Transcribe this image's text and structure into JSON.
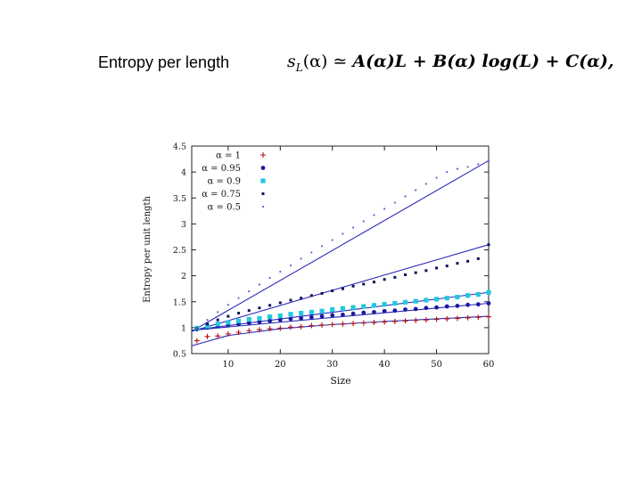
{
  "slide": {
    "title": "Entropy per length",
    "formula": {
      "lhs": "s",
      "lhs_sub": "L",
      "lhs_arg": "(α)",
      "relation": " ≃ ",
      "rhs": "A(α)L + B(α) log(L) + C(α),"
    }
  },
  "chart_data": {
    "type": "line",
    "xlabel": "Size",
    "ylabel": "Entropy per unit length",
    "xlim": [
      3,
      60
    ],
    "ylim": [
      0.5,
      4.5
    ],
    "xticks": [
      10,
      20,
      30,
      40,
      50,
      60
    ],
    "yticks": [
      0.5,
      1,
      1.5,
      2,
      2.5,
      3,
      3.5,
      4,
      4.5
    ],
    "legend_position": "top-left",
    "fit_color": "#2a2ab8",
    "series": [
      {
        "name": "α = 1",
        "marker": "plus",
        "color": "#b01010",
        "x": [
          4,
          6,
          8,
          10,
          12,
          14,
          16,
          18,
          20,
          22,
          24,
          26,
          28,
          30,
          32,
          34,
          36,
          38,
          40,
          42,
          44,
          46,
          48,
          50,
          52,
          54,
          56,
          58,
          60
        ],
        "y": [
          0.75,
          0.83,
          0.84,
          0.88,
          0.91,
          0.94,
          0.96,
          0.98,
          0.99,
          1.01,
          1.02,
          1.04,
          1.05,
          1.06,
          1.07,
          1.08,
          1.09,
          1.1,
          1.11,
          1.12,
          1.13,
          1.14,
          1.15,
          1.16,
          1.17,
          1.18,
          1.19,
          1.2,
          1.21
        ]
      },
      {
        "name": "α = 0.95",
        "marker": "circle",
        "color": "#1a1aa0",
        "x": [
          4,
          6,
          8,
          10,
          12,
          14,
          16,
          18,
          20,
          22,
          24,
          26,
          28,
          30,
          32,
          34,
          36,
          38,
          40,
          42,
          44,
          46,
          48,
          50,
          52,
          54,
          56,
          58,
          60
        ],
        "y": [
          0.97,
          1.0,
          1.03,
          1.05,
          1.07,
          1.09,
          1.11,
          1.13,
          1.15,
          1.17,
          1.18,
          1.2,
          1.22,
          1.24,
          1.25,
          1.27,
          1.29,
          1.3,
          1.32,
          1.33,
          1.35,
          1.36,
          1.38,
          1.39,
          1.41,
          1.42,
          1.44,
          1.45,
          1.47
        ]
      },
      {
        "name": "α = 0.9",
        "marker": "square",
        "color": "#22c8e0",
        "x": [
          4,
          6,
          8,
          10,
          12,
          14,
          16,
          18,
          20,
          22,
          24,
          26,
          28,
          30,
          32,
          34,
          36,
          38,
          40,
          42,
          44,
          46,
          48,
          50,
          52,
          54,
          56,
          58,
          60
        ],
        "y": [
          0.99,
          1.03,
          1.07,
          1.1,
          1.13,
          1.16,
          1.18,
          1.21,
          1.23,
          1.26,
          1.28,
          1.3,
          1.32,
          1.35,
          1.37,
          1.39,
          1.41,
          1.43,
          1.45,
          1.47,
          1.49,
          1.51,
          1.53,
          1.55,
          1.57,
          1.59,
          1.62,
          1.64,
          1.68
        ]
      },
      {
        "name": "α = 0.75",
        "marker": "dot",
        "color": "#10105a",
        "x": [
          4,
          6,
          8,
          10,
          12,
          14,
          16,
          18,
          20,
          22,
          24,
          26,
          28,
          30,
          32,
          34,
          36,
          38,
          40,
          42,
          44,
          46,
          48,
          50,
          52,
          54,
          56,
          58,
          60
        ],
        "y": [
          0.98,
          1.07,
          1.15,
          1.22,
          1.28,
          1.33,
          1.38,
          1.43,
          1.48,
          1.53,
          1.57,
          1.62,
          1.66,
          1.71,
          1.75,
          1.8,
          1.84,
          1.88,
          1.93,
          1.97,
          2.02,
          2.06,
          2.1,
          2.15,
          2.19,
          2.24,
          2.28,
          2.33,
          2.6
        ]
      },
      {
        "name": "α = 0.5",
        "marker": "smalldot",
        "color": "#6a5acd",
        "x": [
          4,
          6,
          8,
          10,
          12,
          14,
          16,
          18,
          20,
          22,
          24,
          26,
          28,
          30,
          32,
          34,
          36,
          38,
          40,
          42,
          44,
          46,
          48,
          50,
          52,
          54,
          56,
          58,
          60
        ],
        "y": [
          0.98,
          1.15,
          1.3,
          1.44,
          1.57,
          1.7,
          1.83,
          1.96,
          2.08,
          2.2,
          2.33,
          2.45,
          2.57,
          2.69,
          2.81,
          2.93,
          3.05,
          3.17,
          3.29,
          3.41,
          3.53,
          3.65,
          3.77,
          3.89,
          4.0,
          4.06,
          4.1,
          4.15,
          4.22
        ]
      }
    ],
    "fit_lines": [
      {
        "x": [
          3,
          10,
          20,
          30,
          40,
          50,
          60
        ],
        "y": [
          0.65,
          0.85,
          0.98,
          1.06,
          1.12,
          1.17,
          1.22
        ]
      },
      {
        "x": [
          3,
          60
        ],
        "y": [
          0.95,
          1.47
        ]
      },
      {
        "x": [
          3,
          60
        ],
        "y": [
          0.95,
          1.68
        ]
      },
      {
        "x": [
          3,
          60
        ],
        "y": [
          0.93,
          2.6
        ]
      },
      {
        "x": [
          3,
          60
        ],
        "y": [
          0.93,
          4.22
        ]
      }
    ]
  }
}
